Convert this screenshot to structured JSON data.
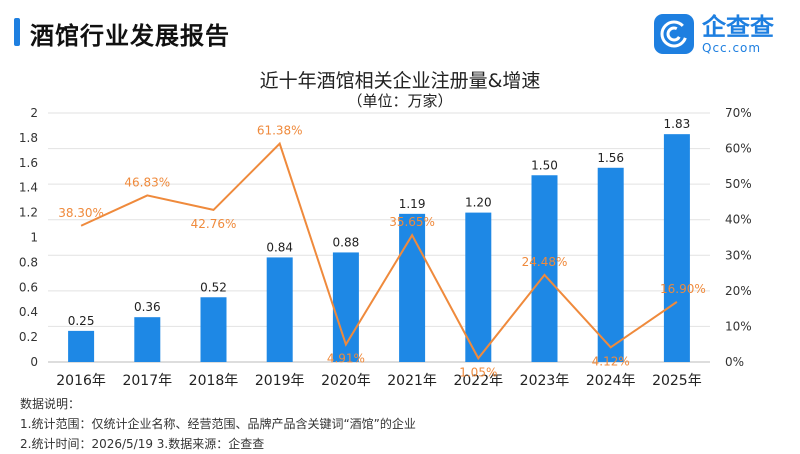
{
  "header": {
    "title": "酒馆行业发展报告"
  },
  "logo": {
    "name": "企查查",
    "domain": "Qcc.com"
  },
  "chart_data": {
    "type": "bar+line",
    "title": "近十年酒馆相关企业注册量&增速",
    "subtitle": "（单位：万家）",
    "categories": [
      "2016年",
      "2017年",
      "2018年",
      "2019年",
      "2020年",
      "2021年",
      "2022年",
      "2023年",
      "2024年",
      "2025年"
    ],
    "series": [
      {
        "axis": "left",
        "type": "bar",
        "color": "#1e88e5",
        "values": [
          0.25,
          0.36,
          0.52,
          0.84,
          0.88,
          1.19,
          1.2,
          1.5,
          1.56,
          1.83
        ],
        "labels": [
          "0.25",
          "0.36",
          "0.52",
          "0.84",
          "0.88",
          "1.19",
          "1.20",
          "1.50",
          "1.56",
          "1.83"
        ]
      },
      {
        "axis": "right",
        "type": "line",
        "color": "#ef8a3c",
        "values": [
          38.3,
          46.83,
          42.76,
          61.38,
          4.91,
          35.65,
          1.05,
          24.48,
          4.12,
          16.9
        ],
        "labels": [
          "38.30%",
          "46.83%",
          "42.76%",
          "61.38%",
          "4.91%",
          "35.65%",
          "1.05%",
          "24.48%",
          "4.12%",
          "16.90%"
        ]
      }
    ],
    "y_left": {
      "ylim": [
        0,
        2
      ],
      "ticks": [
        "0",
        "0.2",
        "0.4",
        "0.6",
        "0.8",
        "1",
        "1.2",
        "1.4",
        "1.6",
        "1.8",
        "2"
      ]
    },
    "y_right": {
      "ylim": [
        0,
        70
      ],
      "ticks": [
        "0%",
        "10%",
        "20%",
        "30%",
        "40%",
        "50%",
        "60%",
        "70%"
      ]
    },
    "grid": true
  },
  "notes": {
    "heading": "数据说明：",
    "line1": "1.统计范围：仅统计企业名称、经营范围、品牌产品含关键词“酒馆”的企业",
    "line2": "2.统计时间：2026/5/19 3.数据来源：企查查"
  }
}
